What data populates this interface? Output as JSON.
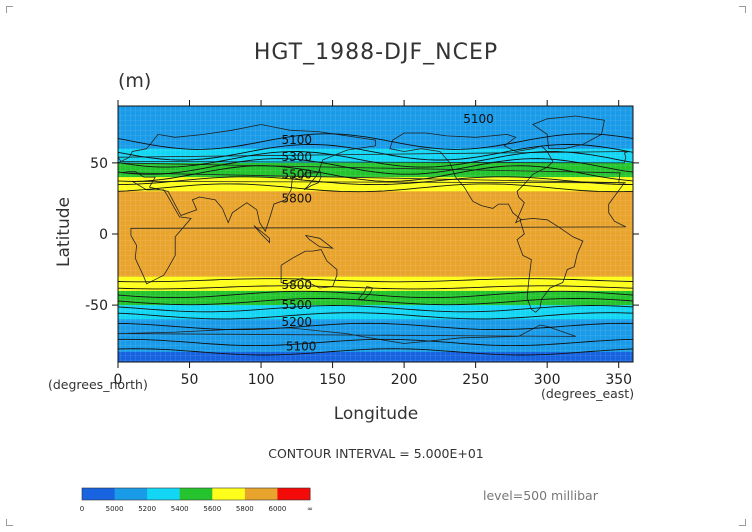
{
  "page": {
    "title": "HGT_1988-DJF_NCEP",
    "units": "(m)",
    "y_axis_label": "Latitude",
    "x_axis_label": "Longitude",
    "x_left_unit": "(degrees_north)",
    "x_right_unit": "(degrees_east)",
    "contour_interval_text": "CONTOUR INTERVAL = 5.000E+01",
    "level_text": "level=500 millibar"
  },
  "colorbar": {
    "tick_labels": [
      "0",
      "5000",
      "5200",
      "5400",
      "5600",
      "5800",
      "6000",
      "∞"
    ],
    "colors": [
      "#1763e0",
      "#1a9be8",
      "#13d6f4",
      "#25c42e",
      "#ffff1c",
      "#e9a42e",
      "#f50a0a"
    ]
  },
  "chart_data": {
    "type": "heatmap",
    "title": "HGT_1988-DJF_NCEP",
    "units": "(m)",
    "xlabel": "Longitude",
    "ylabel": "Latitude",
    "xlim": [
      0,
      360
    ],
    "ylim": [
      -90,
      90
    ],
    "x_ticks": [
      0,
      50,
      100,
      150,
      200,
      250,
      300,
      350
    ],
    "y_ticks": [
      -50,
      0,
      50
    ],
    "grid": false,
    "contour_interval": 50,
    "color_levels": [
      {
        "range": [
          0,
          5000
        ],
        "color": "#1763e0"
      },
      {
        "range": [
          5000,
          5200
        ],
        "color": "#1a9be8"
      },
      {
        "range": [
          5200,
          5400
        ],
        "color": "#13d6f4"
      },
      {
        "range": [
          5400,
          5600
        ],
        "color": "#25c42e"
      },
      {
        "range": [
          5600,
          5800
        ],
        "color": "#ffff1c"
      },
      {
        "range": [
          5800,
          6000
        ],
        "color": "#e9a42e"
      },
      {
        "range": [
          6000,
          null
        ],
        "color": "#f50a0a"
      }
    ],
    "contour_labels": [
      {
        "text": "5100",
        "lon": 125,
        "lat": 66
      },
      {
        "text": "5100",
        "lon": 252,
        "lat": 81
      },
      {
        "text": "5300",
        "lon": 125,
        "lat": 54
      },
      {
        "text": "5500",
        "lon": 125,
        "lat": 42
      },
      {
        "text": "5800",
        "lon": 125,
        "lat": 25
      },
      {
        "text": "5800",
        "lon": 125,
        "lat": -36
      },
      {
        "text": "5500",
        "lon": 125,
        "lat": -50
      },
      {
        "text": "5200",
        "lon": 125,
        "lat": -62
      },
      {
        "text": "5100",
        "lon": 128,
        "lat": -79
      }
    ],
    "zonal_mean_profile": {
      "lat": [
        -90,
        -80,
        -70,
        -60,
        -55,
        -50,
        -45,
        -40,
        -35,
        -30,
        -25,
        25,
        30,
        35,
        40,
        45,
        50,
        55,
        60,
        70,
        80,
        90
      ],
      "height_m": [
        4950,
        5020,
        5100,
        5200,
        5300,
        5400,
        5500,
        5600,
        5700,
        5800,
        5850,
        5850,
        5800,
        5700,
        5600,
        5500,
        5400,
        5300,
        5200,
        5100,
        5050,
        5000
      ]
    },
    "level": "500 millibar"
  }
}
